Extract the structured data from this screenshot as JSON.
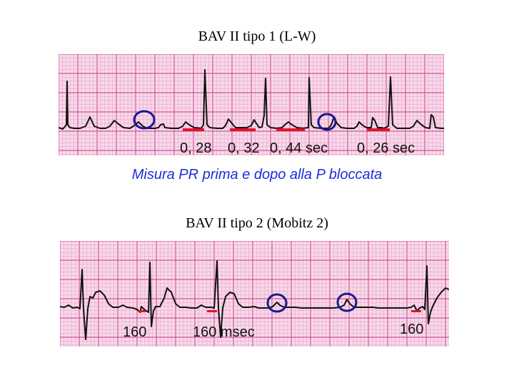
{
  "top_section": {
    "title": "BAV II tipo 1 (L-W)",
    "labels": [
      "0, 28",
      "0, 32",
      "0, 44 sec",
      "0, 26 sec"
    ],
    "caption": "Misura PR prima e dopo alla P bloccata"
  },
  "bottom_section": {
    "title": "BAV II tipo 2 (Mobitz 2)",
    "labels": [
      "160",
      "160 msec",
      "160"
    ]
  },
  "colors": {
    "grid_bg": "#f7d9ea",
    "grid_minor": "#e9a3c6",
    "grid_major": "#d2569a",
    "trace": "#111111",
    "pr_marker": "#e0142a",
    "blocked_p_circle": "#1a1a8c",
    "caption": "#1b2fd6"
  }
}
